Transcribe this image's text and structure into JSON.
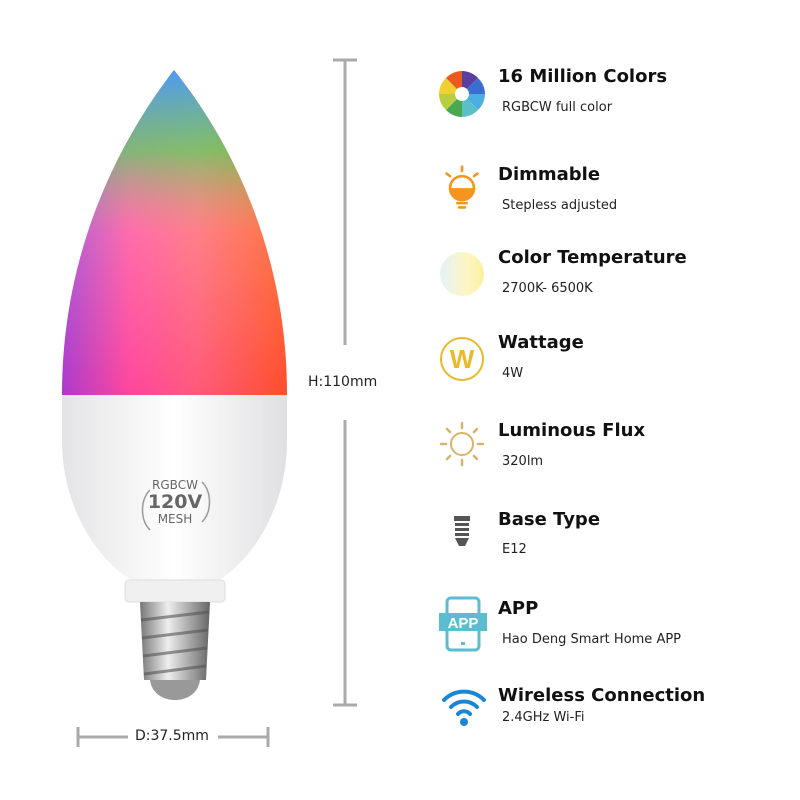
{
  "bulb": {
    "label_top": "RGBCW",
    "label_voltage": "120V",
    "label_bottom": "MESH"
  },
  "dimensions": {
    "height": "H:110mm",
    "diameter": "D:37.5mm"
  },
  "features": [
    {
      "icon": "color-wheel-icon",
      "title": "16 Million Colors",
      "subtitle": "RGBCW full color"
    },
    {
      "icon": "dimmable-bulb-icon",
      "title": "Dimmable",
      "subtitle": "Stepless adjusted"
    },
    {
      "icon": "color-temperature-icon",
      "title": "Color Temperature",
      "subtitle": "2700K- 6500K"
    },
    {
      "icon": "wattage-icon",
      "title": "Wattage",
      "subtitle": "4W"
    },
    {
      "icon": "sun-icon",
      "title": "Luminous Flux",
      "subtitle": "320lm"
    },
    {
      "icon": "bulb-base-icon",
      "title": "Base Type",
      "subtitle": "E12"
    },
    {
      "icon": "app-phone-icon",
      "title": "APP",
      "subtitle": "Hao Deng Smart Home APP"
    },
    {
      "icon": "wifi-icon",
      "title": "Wireless Connection",
      "subtitle": "2.4GHz Wi-Fi"
    }
  ],
  "colors": {
    "orange": "#f7941d",
    "yellow": "#e9b92a",
    "app_blue": "#5bbdd0",
    "wifi_blue": "#1a86d6"
  }
}
